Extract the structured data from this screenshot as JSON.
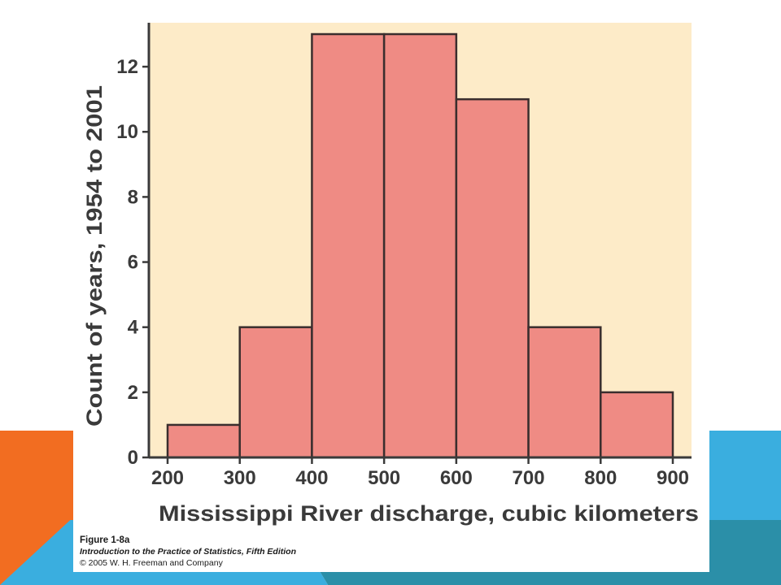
{
  "slide": {
    "accent_colors": {
      "orange": "#f26d21",
      "blue": "#3aaedf",
      "teal": "#2b8fa8"
    }
  },
  "caption": {
    "figure": "Figure 1-8a",
    "book": "Introduction to the Practice of Statistics, Fifth Edition",
    "copyright": "© 2005 W. H. Freeman and Company"
  },
  "chart_data": {
    "type": "bar",
    "subtype": "histogram",
    "bins": [
      [
        200,
        300
      ],
      [
        300,
        400
      ],
      [
        400,
        500
      ],
      [
        500,
        600
      ],
      [
        600,
        700
      ],
      [
        700,
        800
      ],
      [
        800,
        900
      ]
    ],
    "values": [
      1,
      4,
      13,
      13,
      11,
      4,
      2
    ],
    "xlabel": "Mississippi River discharge, cubic kilometers",
    "ylabel": "Count of years, 1954 to 2001",
    "xticks": [
      200,
      300,
      400,
      500,
      600,
      700,
      800,
      900
    ],
    "yticks": [
      0,
      2,
      4,
      6,
      8,
      10,
      12
    ],
    "xlim": [
      200,
      900
    ],
    "ylim": [
      0,
      13.2
    ],
    "grid": false,
    "colors": {
      "plot_background": "#fdebc8",
      "bar_fill": "#ef8b84",
      "bar_edge": "#3a2e2e",
      "axis": "#3a3a3a"
    }
  }
}
